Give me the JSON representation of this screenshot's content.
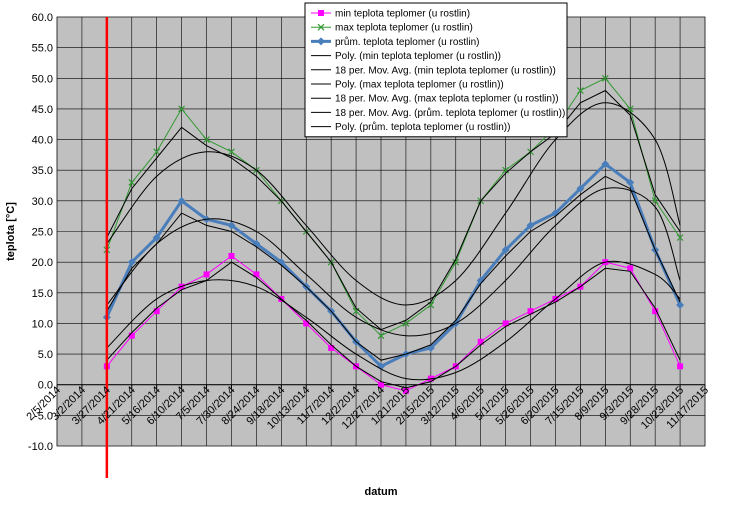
{
  "chart_data": {
    "type": "line",
    "xlabel": "datum",
    "ylabel": "teplota [°C]",
    "ylim": [
      -10,
      60
    ],
    "yticks": [
      "60.0",
      "55.0",
      "50.0",
      "45.0",
      "40.0",
      "35.0",
      "30.0",
      "25.0",
      "20.0",
      "15.0",
      "10.0",
      "5.0",
      "0.0",
      "-5.0",
      "-10.0"
    ],
    "xticks": [
      "2/5/2014",
      "3/2/2014",
      "3/27/2014",
      "4/21/2014",
      "5/16/2014",
      "6/10/2014",
      "7/5/2014",
      "7/30/2014",
      "8/24/2014",
      "9/18/2014",
      "10/13/2014",
      "11/7/2014",
      "12/2/2014",
      "12/27/2014",
      "1/21/2015",
      "2/15/2015",
      "3/12/2015",
      "4/6/2015",
      "5/1/2015",
      "5/26/2015",
      "6/20/2015",
      "7/15/2015",
      "8/9/2015",
      "9/3/2015",
      "9/28/2015",
      "10/23/2015",
      "11/17/2015"
    ],
    "marker_line_date": "3/27/2014",
    "grid": true,
    "legend_position": "top-center",
    "colors": {
      "min": "#ff00ff",
      "max": "#339933",
      "avg": "#4a7ebb",
      "trend": "#000000",
      "marker": "#ff0000",
      "plot_bg": "#c0c0c0"
    },
    "legend": [
      "min teplota teplomer (u rostlin)",
      "max teplota teplomer (u rostlin)",
      "prům. teplota teplomer (u rostlin)",
      "Poly. (min teplota teplomer (u rostlin))",
      "18 per. Mov. Avg. (min teplota teplomer (u rostlin))",
      "Poly. (max teplota teplomer (u rostlin))",
      "18 per. Mov. Avg. (max teplota teplomer (u rostlin))",
      "18 per. Mov. Avg. (prům. teplota teplomer (u rostlin))",
      "Poly. (prům. teplota teplomer (u rostlin))"
    ],
    "series": [
      {
        "name": "min teplota teplomer (u rostlin)",
        "x": [
          "3/27/2014",
          "4/21/2014",
          "5/16/2014",
          "6/10/2014",
          "7/5/2014",
          "7/30/2014",
          "8/24/2014",
          "9/18/2014",
          "10/13/2014",
          "11/7/2014",
          "12/2/2014",
          "12/27/2014",
          "1/21/2015",
          "2/15/2015",
          "3/12/2015",
          "4/6/2015",
          "5/1/2015",
          "5/26/2015",
          "6/20/2015",
          "7/15/2015",
          "8/9/2015",
          "9/3/2015",
          "9/28/2015",
          "10/23/2015"
        ],
        "values": [
          3.0,
          8.0,
          12.0,
          16.0,
          18.0,
          21.0,
          18.0,
          14.0,
          10.0,
          6.0,
          3.0,
          0.0,
          -1.0,
          1.0,
          3.0,
          7.0,
          10.0,
          12.0,
          14.0,
          16.0,
          20.0,
          19.0,
          12.0,
          3.0
        ]
      },
      {
        "name": "max teplota teplomer (u rostlin)",
        "x": [
          "3/27/2014",
          "4/21/2014",
          "5/16/2014",
          "6/10/2014",
          "7/5/2014",
          "7/30/2014",
          "8/24/2014",
          "9/18/2014",
          "10/13/2014",
          "11/7/2014",
          "12/2/2014",
          "12/27/2014",
          "1/21/2015",
          "2/15/2015",
          "3/12/2015",
          "4/6/2015",
          "5/1/2015",
          "5/26/2015",
          "6/20/2015",
          "7/15/2015",
          "8/9/2015",
          "9/3/2015",
          "9/28/2015",
          "10/23/2015"
        ],
        "values": [
          22.0,
          33.0,
          38.0,
          45.0,
          40.0,
          38.0,
          35.0,
          30.0,
          25.0,
          20.0,
          12.0,
          8.0,
          10.0,
          13.0,
          20.0,
          30.0,
          35.0,
          38.0,
          42.0,
          48.0,
          50.0,
          45.0,
          30.0,
          24.0
        ]
      },
      {
        "name": "prům. teplota teplomer (u rostlin)",
        "x": [
          "3/27/2014",
          "4/21/2014",
          "5/16/2014",
          "6/10/2014",
          "7/5/2014",
          "7/30/2014",
          "8/24/2014",
          "9/18/2014",
          "10/13/2014",
          "11/7/2014",
          "12/2/2014",
          "12/27/2014",
          "1/21/2015",
          "2/15/2015",
          "3/12/2015",
          "4/6/2015",
          "5/1/2015",
          "5/26/2015",
          "6/20/2015",
          "7/15/2015",
          "8/9/2015",
          "9/3/2015",
          "9/28/2015",
          "10/23/2015"
        ],
        "values": [
          11.0,
          20.0,
          24.0,
          30.0,
          27.0,
          26.0,
          23.0,
          20.0,
          16.0,
          12.0,
          7.0,
          3.0,
          5.0,
          6.0,
          10.0,
          17.0,
          22.0,
          26.0,
          28.0,
          32.0,
          36.0,
          33.0,
          22.0,
          13.0
        ]
      }
    ],
    "trendlines": [
      {
        "name": "Poly. (min teplota teplomer (u rostlin))",
        "x": [
          "3/27/2014",
          "5/16/2014",
          "7/5/2014",
          "8/24/2014",
          "10/13/2014",
          "12/2/2014",
          "1/21/2015",
          "3/12/2015",
          "5/1/2015",
          "6/20/2015",
          "8/9/2015",
          "9/28/2015",
          "10/23/2015"
        ],
        "values": [
          6.0,
          14.0,
          17.0,
          16.0,
          11.0,
          5.0,
          1.0,
          2.0,
          7.0,
          14.0,
          20.0,
          18.0,
          14.0
        ]
      },
      {
        "name": "Poly. (max teplota teplomer (u rostlin))",
        "x": [
          "3/27/2014",
          "5/16/2014",
          "7/5/2014",
          "8/24/2014",
          "10/13/2014",
          "12/2/2014",
          "1/21/2015",
          "3/12/2015",
          "5/1/2015",
          "6/20/2015",
          "8/9/2015",
          "9/28/2015",
          "10/23/2015"
        ],
        "values": [
          23.0,
          34.0,
          38.0,
          35.0,
          26.0,
          17.0,
          13.0,
          17.0,
          28.0,
          40.0,
          46.0,
          40.0,
          26.0
        ]
      },
      {
        "name": "Poly. (prům. teplota teplomer (u rostlin))",
        "x": [
          "3/27/2014",
          "5/16/2014",
          "7/5/2014",
          "8/24/2014",
          "10/13/2014",
          "12/2/2014",
          "1/21/2015",
          "3/12/2015",
          "5/1/2015",
          "6/20/2015",
          "8/9/2015",
          "9/28/2015",
          "10/23/2015"
        ],
        "values": [
          13.0,
          23.0,
          27.0,
          25.0,
          18.0,
          11.0,
          8.0,
          10.0,
          17.0,
          26.0,
          32.0,
          29.0,
          17.0
        ]
      },
      {
        "name": "18 per. Mov. Avg. (min teplota teplomer (u rostlin))",
        "x": [
          "3/27/2014",
          "4/21/2014",
          "5/16/2014",
          "6/10/2014",
          "7/5/2014",
          "7/30/2014",
          "8/24/2014",
          "9/18/2014",
          "10/13/2014",
          "11/7/2014",
          "12/2/2014",
          "12/27/2014",
          "1/21/2015",
          "2/15/2015",
          "3/12/2015",
          "4/6/2015",
          "5/1/2015",
          "5/26/2015",
          "6/20/2015",
          "7/15/2015",
          "8/9/2015",
          "9/3/2015",
          "9/28/2015",
          "10/23/2015"
        ],
        "values": [
          4.0,
          8.5,
          12.5,
          15.5,
          17.0,
          20.0,
          17.5,
          14.0,
          10.5,
          6.5,
          3.0,
          0.5,
          -0.5,
          0.5,
          3.0,
          6.5,
          9.5,
          11.5,
          13.5,
          16.0,
          19.0,
          18.5,
          12.5,
          4.0
        ]
      },
      {
        "name": "18 per. Mov. Avg. (max teplota teplomer (u rostlin))",
        "x": [
          "3/27/2014",
          "4/21/2014",
          "5/16/2014",
          "6/10/2014",
          "7/5/2014",
          "7/30/2014",
          "8/24/2014",
          "9/18/2014",
          "10/13/2014",
          "11/7/2014",
          "12/2/2014",
          "12/27/2014",
          "1/21/2015",
          "2/15/2015",
          "3/12/2015",
          "4/6/2015",
          "5/1/2015",
          "5/26/2015",
          "6/20/2015",
          "7/15/2015",
          "8/9/2015",
          "9/3/2015",
          "9/28/2015",
          "10/23/2015"
        ],
        "values": [
          24.0,
          32.0,
          37.0,
          42.0,
          39.0,
          37.0,
          34.0,
          30.0,
          25.0,
          20.0,
          12.5,
          9.0,
          10.5,
          13.5,
          20.5,
          30.0,
          34.5,
          38.0,
          41.0,
          46.0,
          48.0,
          44.0,
          31.0,
          25.0
        ]
      },
      {
        "name": "18 per. Mov. Avg. (prům. teplota teplomer (u rostlin))",
        "x": [
          "3/27/2014",
          "4/21/2014",
          "5/16/2014",
          "6/10/2014",
          "7/5/2014",
          "7/30/2014",
          "8/24/2014",
          "9/18/2014",
          "10/13/2014",
          "11/7/2014",
          "12/2/2014",
          "12/27/2014",
          "1/21/2015",
          "2/15/2015",
          "3/12/2015",
          "4/6/2015",
          "5/1/2015",
          "5/26/2015",
          "6/20/2015",
          "7/15/2015",
          "8/9/2015",
          "9/3/2015",
          "9/28/2015",
          "10/23/2015"
        ],
        "values": [
          12.0,
          19.0,
          23.0,
          28.0,
          26.0,
          25.0,
          22.5,
          19.5,
          16.0,
          12.0,
          7.0,
          4.0,
          5.0,
          6.5,
          10.5,
          16.5,
          21.0,
          25.0,
          27.5,
          31.0,
          34.0,
          32.0,
          22.0,
          13.5
        ]
      }
    ]
  }
}
